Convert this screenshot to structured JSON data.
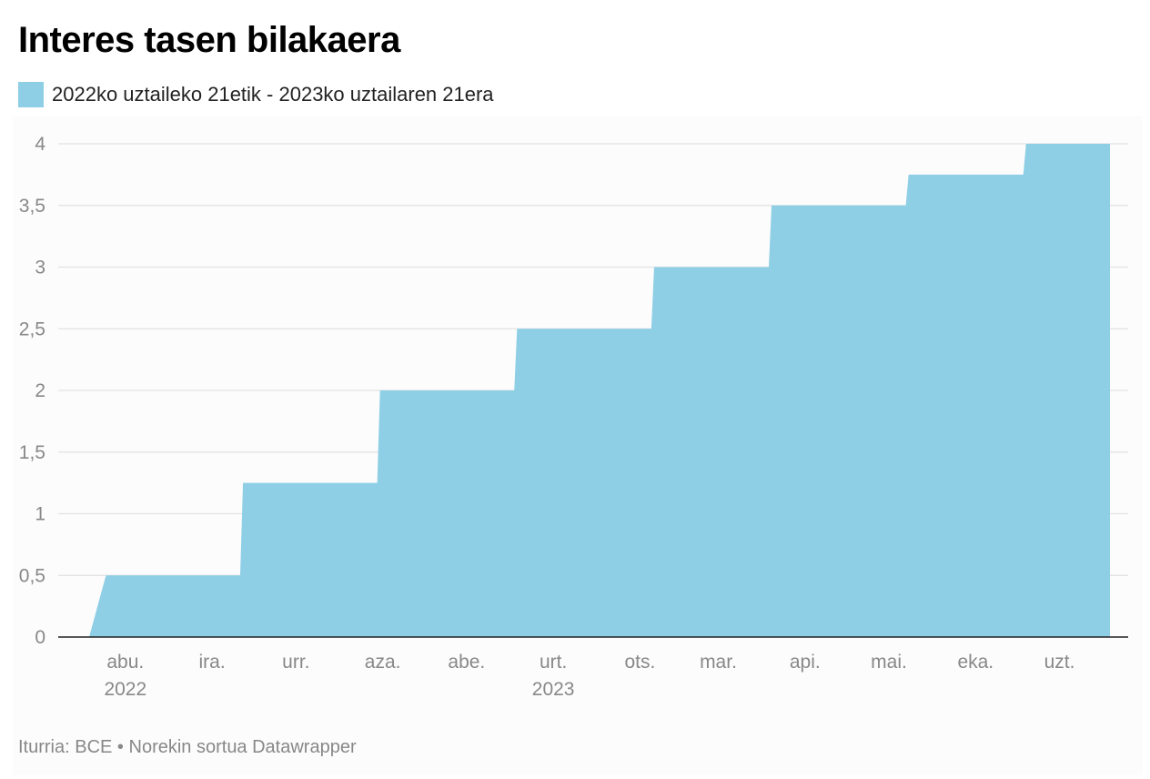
{
  "header": {
    "title": "Interes tasen bilakaera"
  },
  "legend": {
    "items": [
      {
        "label": "2022ko uztaileko 21etik - 2023ko uztailaren 21era",
        "color": "#8ecfe6"
      }
    ]
  },
  "footer": {
    "source": "Iturria: BCE",
    "separator": "•",
    "credit": "Norekin sortua Datawrapper"
  },
  "chart_data": {
    "type": "area",
    "title": "Interes tasen bilakaera",
    "xlabel": "",
    "ylabel": "",
    "ylim": [
      0,
      4
    ],
    "grid": true,
    "legend_position": "top-left",
    "colors": {
      "area": "#8ecfe6",
      "grid": "#e2e2e2",
      "baseline": "#222222",
      "tick_label": "#888888"
    },
    "y_ticks": [
      {
        "value": 0,
        "label": "0"
      },
      {
        "value": 0.5,
        "label": "0,5"
      },
      {
        "value": 1,
        "label": "1"
      },
      {
        "value": 1.5,
        "label": "1,5"
      },
      {
        "value": 2,
        "label": "2"
      },
      {
        "value": 2.5,
        "label": "2,5"
      },
      {
        "value": 3,
        "label": "3"
      },
      {
        "value": 3.5,
        "label": "3,5"
      },
      {
        "value": 4,
        "label": "4"
      }
    ],
    "x_domain": [
      "2022-07-21",
      "2023-07-21"
    ],
    "x_ticks": [
      {
        "date": "2022-08-01",
        "label": "abu.",
        "year": "2022"
      },
      {
        "date": "2022-09-01",
        "label": "ira."
      },
      {
        "date": "2022-10-01",
        "label": "urr."
      },
      {
        "date": "2022-11-01",
        "label": "aza."
      },
      {
        "date": "2022-12-01",
        "label": "abe."
      },
      {
        "date": "2023-01-01",
        "label": "urt.",
        "year": "2023"
      },
      {
        "date": "2023-02-01",
        "label": "ots."
      },
      {
        "date": "2023-03-01",
        "label": "mar."
      },
      {
        "date": "2023-04-01",
        "label": "api."
      },
      {
        "date": "2023-05-01",
        "label": "mai."
      },
      {
        "date": "2023-06-01",
        "label": "eka."
      },
      {
        "date": "2023-07-01",
        "label": "uzt."
      }
    ],
    "series": [
      {
        "name": "2022ko uztaileko 21etik - 2023ko uztailaren 21era",
        "points": [
          {
            "date": "2022-07-21",
            "value": 0
          },
          {
            "date": "2022-07-27",
            "value": 0.5
          },
          {
            "date": "2022-09-13",
            "value": 0.5
          },
          {
            "date": "2022-09-14",
            "value": 1.25
          },
          {
            "date": "2022-11-01",
            "value": 1.25
          },
          {
            "date": "2022-11-02",
            "value": 2
          },
          {
            "date": "2022-12-20",
            "value": 2
          },
          {
            "date": "2022-12-21",
            "value": 2.5
          },
          {
            "date": "2023-02-07",
            "value": 2.5
          },
          {
            "date": "2023-02-08",
            "value": 3
          },
          {
            "date": "2023-03-21",
            "value": 3
          },
          {
            "date": "2023-03-22",
            "value": 3.5
          },
          {
            "date": "2023-05-09",
            "value": 3.5
          },
          {
            "date": "2023-05-10",
            "value": 3.75
          },
          {
            "date": "2023-06-20",
            "value": 3.75
          },
          {
            "date": "2023-06-21",
            "value": 4
          },
          {
            "date": "2023-07-21",
            "value": 4
          }
        ]
      }
    ]
  }
}
